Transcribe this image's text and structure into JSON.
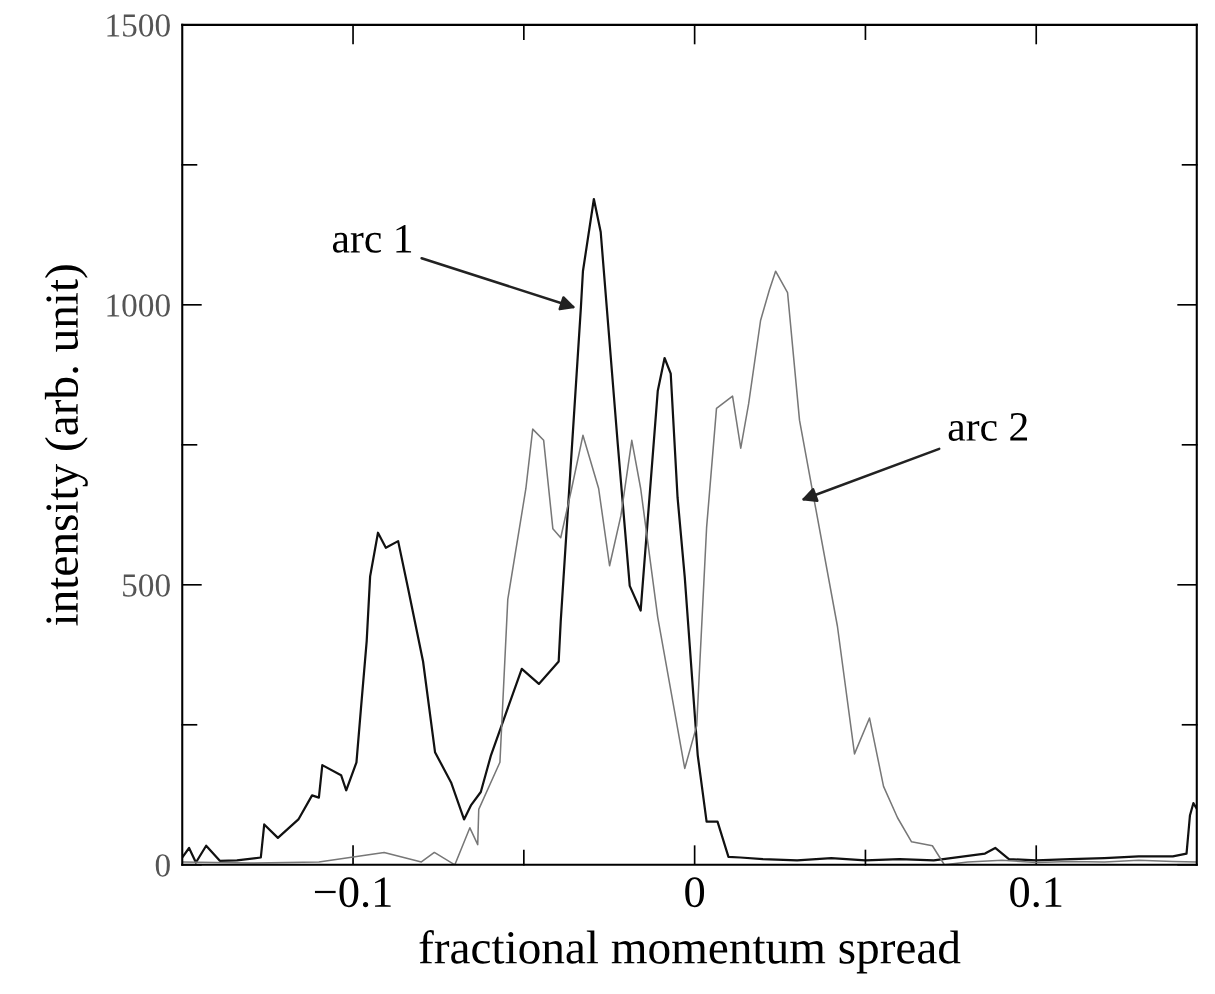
{
  "chart_data": {
    "type": "line",
    "xlabel": "fractional momentum spread",
    "ylabel": "intensity (arb. unit)",
    "xlim": [
      -0.15,
      0.147
    ],
    "ylim": [
      0,
      1500
    ],
    "xticks": [
      {
        "value": -0.1,
        "label": "−0.1"
      },
      {
        "value": -0.05,
        "label": null
      },
      0,
      {
        "value": 0.05,
        "label": null
      },
      0.1
    ],
    "yticks": [
      0,
      {
        "value": 250,
        "label": null
      },
      500,
      {
        "value": 750,
        "label": null
      },
      1000,
      {
        "value": 1250,
        "label": null
      },
      1500
    ],
    "grid": false,
    "marker": "none",
    "line_style": "solid",
    "annotations": [
      "arc 1",
      "arc 2"
    ],
    "series": [
      {
        "color": "#111111",
        "x": [
          -0.15,
          -0.148,
          -0.146,
          -0.143,
          -0.139,
          -0.134,
          -0.127,
          -0.126,
          -0.122,
          -0.116,
          -0.112,
          -0.11,
          -0.109,
          -0.1035,
          -0.102,
          -0.099,
          -0.0977,
          -0.096,
          -0.095,
          -0.0927,
          -0.0904,
          -0.0868,
          -0.0839,
          -0.0795,
          -0.076,
          -0.0713,
          -0.0675,
          -0.0655,
          -0.0626,
          -0.0596,
          -0.0506,
          -0.0456,
          -0.0398,
          -0.0392,
          -0.0333,
          -0.0327,
          -0.0295,
          -0.0275,
          -0.0225,
          -0.019,
          -0.0158,
          -0.0108,
          -0.0088,
          -0.007,
          -0.005,
          -0.0029,
          0.0009,
          0.0035,
          0.0067,
          0.0099,
          0.0134,
          0.02,
          0.03,
          0.04,
          0.05,
          0.06,
          0.07,
          0.085,
          0.088,
          0.092,
          0.1,
          0.11,
          0.12,
          0.13,
          0.14,
          0.144,
          0.145,
          0.146,
          0.147
        ],
        "values": [
          13,
          30,
          4,
          34,
          7,
          8,
          13,
          72,
          48,
          81,
          124,
          120,
          178,
          160,
          133,
          183,
          278,
          400,
          515,
          593,
          566,
          578,
          494,
          363,
          201,
          147,
          81,
          106,
          130,
          196,
          350,
          323,
          363,
          435,
          995,
          1060,
          1189,
          1130,
          751,
          498,
          454,
          846,
          905,
          877,
          656,
          514,
          196,
          77,
          77,
          14,
          13,
          10,
          8,
          12,
          8,
          10,
          8,
          20,
          30,
          10,
          8,
          10,
          12,
          15,
          15,
          20,
          88,
          110,
          100
        ]
      },
      {
        "color": "#777777",
        "x": [
          -0.15,
          -0.13,
          -0.11,
          -0.0909,
          -0.08,
          -0.0762,
          -0.0702,
          -0.0658,
          -0.0635,
          -0.0632,
          -0.057,
          -0.0547,
          -0.0494,
          -0.0474,
          -0.0442,
          -0.0415,
          -0.0392,
          -0.036,
          -0.0327,
          -0.0281,
          -0.0249,
          -0.0216,
          -0.0184,
          -0.0158,
          -0.0108,
          -0.0059,
          -0.0029,
          0.0006,
          0.0035,
          0.0064,
          0.0111,
          0.0135,
          0.0158,
          0.0193,
          0.0219,
          0.0237,
          0.0272,
          0.0307,
          0.0354,
          0.0418,
          0.0468,
          0.0512,
          0.0553,
          0.0594,
          0.0635,
          0.0696,
          0.0731,
          0.08,
          0.09,
          0.1,
          0.11,
          0.12,
          0.13,
          0.14,
          0.147
        ],
        "values": [
          5,
          3,
          5,
          22,
          5,
          22,
          0,
          66,
          36,
          99,
          183,
          474,
          672,
          778,
          758,
          600,
          584,
          672,
          767,
          672,
          534,
          623,
          758,
          672,
          442,
          275,
          172,
          248,
          602,
          815,
          837,
          744,
          823,
          972,
          1027,
          1060,
          1022,
          794,
          638,
          426,
          198,
          262,
          140,
          84,
          41,
          34,
          0,
          5,
          8,
          4,
          6,
          5,
          8,
          6,
          5
        ]
      }
    ]
  }
}
